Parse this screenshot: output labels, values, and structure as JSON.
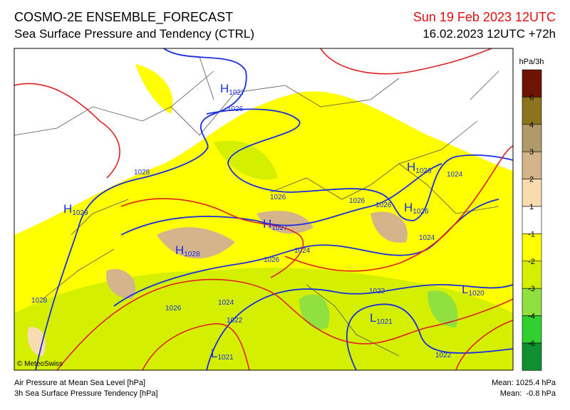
{
  "header": {
    "title": "COSMO-2E ENSEMBLE_FORECAST",
    "subtitle": "Sea Surface Pressure and Tendency (CTRL)",
    "valid_time": "Sun 19 Feb 2023 12UTC",
    "run": "16.02.2023 12UTC +72h"
  },
  "legend": {
    "unit": "hPa/3h",
    "labels": [
      "6",
      "4",
      "3",
      "2",
      "1",
      "-1",
      "-2",
      "-3",
      "-4",
      "-6"
    ],
    "colors": [
      "#6e1405",
      "#8c7320",
      "#b09a6a",
      "#d4b48a",
      "#f8dcb0",
      "#ffffff",
      "#ffff00",
      "#d4f000",
      "#90e040",
      "#30d030",
      "#109030"
    ]
  },
  "map": {
    "centers": [
      {
        "letter": "H",
        "value": "1027"
      },
      {
        "letter": "H",
        "value": "1029"
      },
      {
        "letter": "H",
        "value": "1026"
      },
      {
        "letter": "H",
        "value": "1026"
      },
      {
        "letter": "H",
        "value": "1027"
      },
      {
        "letter": "H",
        "value": "1028"
      },
      {
        "letter": "L",
        "value": "1020"
      },
      {
        "letter": "L",
        "value": "1021"
      },
      {
        "letter": "L",
        "value": "1021"
      }
    ],
    "isobar_labels": [
      "1026",
      "1028",
      "1024",
      "1026",
      "1026",
      "1026",
      "1024",
      "1026",
      "1024",
      "1028",
      "1026",
      "1024",
      "1022",
      "1022",
      "1022"
    ],
    "copyright": "© MeteoSwiss"
  },
  "footer": {
    "left": [
      "Air Pressure at Mean Sea Level [hPa]",
      "3h Sea Surface Pressure Tendency [hPa]"
    ],
    "right": [
      "Mean: 1025.4 hPa",
      "Mean:  -0.8 hPa"
    ]
  }
}
